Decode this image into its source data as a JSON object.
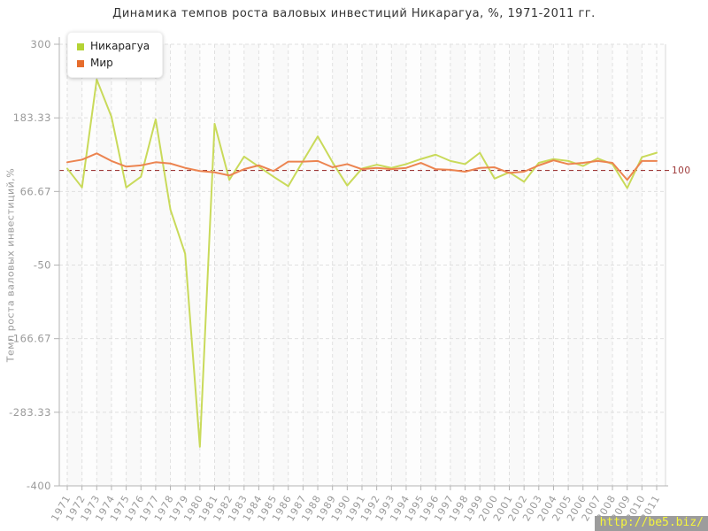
{
  "title": "Динамика темпов роста валовых инвестиций Никарагуа, %, 1971-2011 гг.",
  "watermark": "http://be5.biz/",
  "colors": {
    "nicaragua_line": "#c9da5a",
    "nicaragua_swatch": "#b4d335",
    "world_line": "#ec8450",
    "world_swatch": "#e66c2c",
    "ref_line": "#9e3a3a",
    "grid": "#e0e0e0",
    "axis": "#b3b3b3",
    "tick_text": "#9a9a9a",
    "watermark_bg": "#9c9c9c",
    "watermark_text": "#f5f53c"
  },
  "chart_data": {
    "type": "line",
    "title": "Динамика темпов роста валовых инвестиций Никарагуа, %, 1971-2011 гг.",
    "xlabel": "",
    "ylabel": "Темп роста валовых инвестиций,%",
    "x": [
      1971,
      1972,
      1973,
      1974,
      1975,
      1976,
      1977,
      1978,
      1979,
      1980,
      1981,
      1982,
      1983,
      1984,
      1985,
      1986,
      1987,
      1988,
      1989,
      1990,
      1991,
      1992,
      1993,
      1994,
      1995,
      1996,
      1997,
      1998,
      1999,
      2000,
      2001,
      2002,
      2003,
      2004,
      2005,
      2006,
      2007,
      2008,
      2009,
      2010,
      2011
    ],
    "series": [
      {
        "name": "Никарагуа",
        "color": "#c9da5a",
        "swatch": "#b4d335",
        "values": [
          103,
          73,
          244,
          185,
          73,
          90,
          181,
          38,
          -32,
          -338,
          174,
          85,
          122,
          106,
          90,
          75,
          115,
          154,
          113,
          76,
          103,
          109,
          104,
          110,
          118,
          125,
          115,
          110,
          128,
          87,
          97,
          82,
          112,
          118,
          115,
          107,
          119,
          110,
          72,
          121,
          128
        ]
      },
      {
        "name": "Мир",
        "color": "#ec8450",
        "swatch": "#e66c2c",
        "values": [
          113,
          117,
          127,
          115,
          106,
          108,
          113,
          111,
          104,
          99,
          97,
          92,
          102,
          108,
          99,
          114,
          114,
          115,
          105,
          110,
          102,
          104,
          102,
          104,
          112,
          102,
          101,
          98,
          104,
          105,
          96,
          98,
          108,
          116,
          110,
          112,
          115,
          112,
          85,
          115,
          115
        ]
      }
    ],
    "ylim": [
      -400,
      300
    ],
    "yticks": [
      300,
      183.33,
      66.67,
      -50,
      -166.67,
      -283.33,
      -400
    ],
    "ref_line": {
      "value": 100,
      "label": "100",
      "color": "#9e3a3a"
    },
    "grid": true,
    "legend_position": "top-left"
  }
}
